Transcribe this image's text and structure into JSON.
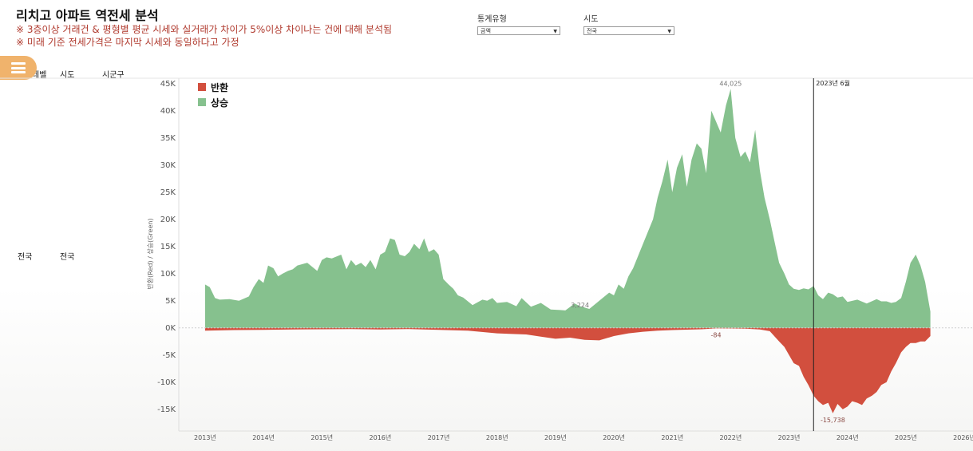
{
  "header": {
    "title": "리치고 아파트 역전세 분석",
    "note1": "※ 3층이상 거래건 & 평형별 평균 시세와 실거래가 차이가 5%이상 차이나는 건에 대해 분석됨",
    "note2": "※ 미래 기준 전세가격은 마지막 시세와 동일하다고 가정"
  },
  "filters": [
    {
      "label": "통계유형",
      "value": "금액"
    },
    {
      "label": "시도",
      "value": "전국"
    }
  ],
  "table": {
    "col_headers": [
      "레벨",
      "시도",
      "시군구"
    ],
    "row": [
      "전국",
      "전국"
    ]
  },
  "colors": {
    "up": "#86c18e",
    "down": "#d24f3e",
    "menu": "#f0b36c"
  },
  "chart_data": {
    "type": "area",
    "ylabel": "반환(Red) / 상승(Green)",
    "ylim": [
      -19000,
      46000
    ],
    "yticks": [
      "45K",
      "40K",
      "35K",
      "30K",
      "25K",
      "20K",
      "15K",
      "10K",
      "5K",
      "0K",
      "-5K",
      "-10K",
      "-15K"
    ],
    "ytick_values": [
      45000,
      40000,
      35000,
      30000,
      25000,
      20000,
      15000,
      10000,
      5000,
      0,
      -5000,
      -10000,
      -15000
    ],
    "xlim": [
      2012.55,
      2026.15
    ],
    "xticks": [
      "2013년",
      "2014년",
      "2015년",
      "2016년",
      "2017년",
      "2018년",
      "2019년",
      "2020년",
      "2021년",
      "2022년",
      "2023년",
      "2024년",
      "2025년",
      "2026년"
    ],
    "xtick_values": [
      2013,
      2014,
      2015,
      2016,
      2017,
      2018,
      2019,
      2020,
      2021,
      2022,
      2023,
      2024,
      2025,
      2026
    ],
    "legend": [
      "반환",
      "상승"
    ],
    "reference_line": {
      "x": 2023.42,
      "label": "2023년 6월"
    },
    "annotations": [
      {
        "text": "44,025",
        "x": 2022.0,
        "y": 44025
      },
      {
        "text": "3,224",
        "x": 2019.42,
        "y": 3224
      },
      {
        "text": "-84",
        "x": 2021.75,
        "y": -84
      },
      {
        "text": "-15,738",
        "x": 2023.75,
        "y": -15738
      }
    ],
    "series": [
      {
        "name": "상승",
        "x": [
          2013.0,
          2013.08,
          2013.17,
          2013.25,
          2013.42,
          2013.58,
          2013.75,
          2013.83,
          2013.92,
          2014.0,
          2014.08,
          2014.17,
          2014.25,
          2014.33,
          2014.42,
          2014.5,
          2014.58,
          2014.75,
          2014.92,
          2015.0,
          2015.08,
          2015.17,
          2015.33,
          2015.42,
          2015.5,
          2015.58,
          2015.67,
          2015.75,
          2015.83,
          2015.92,
          2016.0,
          2016.08,
          2016.17,
          2016.25,
          2016.33,
          2016.42,
          2016.5,
          2016.58,
          2016.67,
          2016.75,
          2016.83,
          2016.92,
          2017.0,
          2017.08,
          2017.17,
          2017.25,
          2017.33,
          2017.42,
          2017.58,
          2017.75,
          2017.83,
          2017.92,
          2018.0,
          2018.17,
          2018.33,
          2018.42,
          2018.58,
          2018.75,
          2018.92,
          2019.08,
          2019.17,
          2019.33,
          2019.42,
          2019.58,
          2019.75,
          2019.92,
          2020.0,
          2020.08,
          2020.17,
          2020.25,
          2020.33,
          2020.5,
          2020.67,
          2020.75,
          2020.83,
          2020.92,
          2021.0,
          2021.08,
          2021.17,
          2021.25,
          2021.33,
          2021.42,
          2021.5,
          2021.58,
          2021.67,
          2021.75,
          2021.83,
          2021.92,
          2022.0,
          2022.08,
          2022.17,
          2022.25,
          2022.33,
          2022.42,
          2022.5,
          2022.58,
          2022.67,
          2022.75,
          2022.83,
          2022.92,
          2023.0,
          2023.08,
          2023.17,
          2023.25,
          2023.33,
          2023.42,
          2023.5,
          2023.58,
          2023.67,
          2023.75,
          2023.83,
          2023.92,
          2024.0,
          2024.17,
          2024.33,
          2024.5,
          2024.58,
          2024.67,
          2024.75,
          2024.83,
          2024.92,
          2025.0,
          2025.08,
          2025.17,
          2025.25,
          2025.33,
          2025.42
        ],
        "values": [
          8000,
          7500,
          5500,
          5200,
          5300,
          5000,
          5800,
          7500,
          9000,
          8300,
          11500,
          11000,
          9500,
          10000,
          10500,
          10800,
          11500,
          12000,
          10500,
          12500,
          13000,
          12800,
          13500,
          10800,
          12500,
          11500,
          12000,
          11200,
          12500,
          10800,
          13500,
          14000,
          16500,
          16200,
          13500,
          13200,
          14000,
          15500,
          14500,
          16500,
          14000,
          14500,
          13500,
          9000,
          8000,
          7200,
          6000,
          5600,
          4200,
          5200,
          5000,
          5500,
          4600,
          4800,
          4000,
          5500,
          3900,
          4600,
          3400,
          3300,
          3224,
          4500,
          4000,
          3500,
          5000,
          6500,
          6000,
          8000,
          7200,
          9500,
          11000,
          15500,
          20000,
          24000,
          27000,
          31000,
          25000,
          29500,
          32000,
          26000,
          31000,
          34000,
          33000,
          28500,
          40000,
          38000,
          36000,
          41000,
          44025,
          35000,
          31500,
          32500,
          30500,
          36500,
          29000,
          24000,
          20000,
          16000,
          12000,
          10000,
          8000,
          7200,
          7000,
          7300,
          7100,
          7700,
          6000,
          5300,
          6500,
          6200,
          5600,
          5800,
          4800,
          5200,
          4500,
          5300,
          4900,
          4900,
          4600,
          4800,
          5500,
          8500,
          12000,
          13500,
          11500,
          8500,
          3000
        ]
      },
      {
        "name": "반환",
        "x": [
          2013.0,
          2013.5,
          2014.0,
          2014.5,
          2015.0,
          2015.5,
          2016.0,
          2016.5,
          2017.0,
          2017.5,
          2018.0,
          2018.5,
          2018.75,
          2019.0,
          2019.25,
          2019.5,
          2019.75,
          2020.0,
          2020.25,
          2020.5,
          2020.75,
          2021.0,
          2021.5,
          2021.75,
          2022.0,
          2022.25,
          2022.5,
          2022.67,
          2022.83,
          2022.92,
          2023.0,
          2023.08,
          2023.17,
          2023.25,
          2023.33,
          2023.42,
          2023.5,
          2023.58,
          2023.67,
          2023.75,
          2023.83,
          2023.92,
          2024.0,
          2024.08,
          2024.17,
          2024.25,
          2024.33,
          2024.42,
          2024.5,
          2024.58,
          2024.67,
          2024.75,
          2024.83,
          2024.92,
          2025.0,
          2025.08,
          2025.17,
          2025.25,
          2025.33,
          2025.42
        ],
        "values": [
          -500,
          -400,
          -350,
          -300,
          -250,
          -200,
          -300,
          -200,
          -350,
          -500,
          -1000,
          -1200,
          -1600,
          -2000,
          -1800,
          -2200,
          -2300,
          -1500,
          -1000,
          -700,
          -500,
          -400,
          -250,
          -84,
          -100,
          -150,
          -300,
          -600,
          -2500,
          -3500,
          -5000,
          -6500,
          -7000,
          -9000,
          -10500,
          -12500,
          -13500,
          -14200,
          -13800,
          -15738,
          -14000,
          -15000,
          -14500,
          -13500,
          -13800,
          -14200,
          -13000,
          -12500,
          -11800,
          -10500,
          -10000,
          -8000,
          -6500,
          -4500,
          -3500,
          -2800,
          -2800,
          -2500,
          -2500,
          -1500
        ]
      }
    ]
  }
}
